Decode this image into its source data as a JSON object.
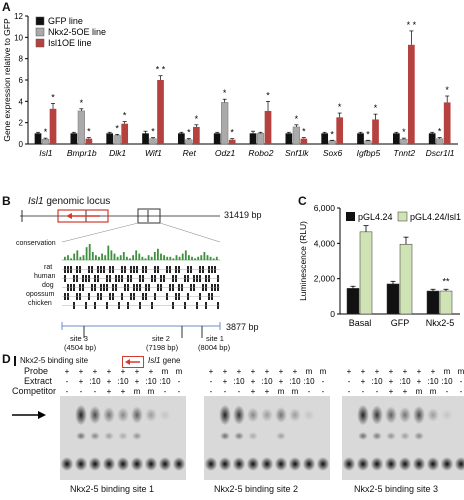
{
  "panels": {
    "a": "A",
    "b": "B",
    "c": "C",
    "d": "D"
  },
  "chart_data": [
    {
      "type": "bar",
      "ylabel": "Gene expression relative to GFP",
      "ylim": [
        0,
        12
      ],
      "yticks": [
        0,
        2,
        4,
        6,
        8,
        10,
        12
      ],
      "legend": "top-left",
      "categories": [
        "Isl1",
        "Bmpr1b",
        "Dlk1",
        "Wif1",
        "Ret",
        "Odz1",
        "Robo2",
        "Snf1lk",
        "Sox6",
        "Igfbp5",
        "Tnnt2",
        "Dscr1l1"
      ],
      "series": [
        {
          "name": "GFP line",
          "color": "#111111",
          "values": [
            1.0,
            1.0,
            1.0,
            1.0,
            1.0,
            1.0,
            1.0,
            1.0,
            1.0,
            1.0,
            1.0,
            1.0
          ],
          "errors": [
            0.1,
            0.1,
            0.1,
            0.2,
            0.1,
            0.1,
            0.2,
            0.1,
            0.1,
            0.1,
            0.1,
            0.1
          ],
          "stars": [
            "",
            "",
            "",
            "",
            "",
            "",
            "",
            "",
            "",
            "",
            "",
            ""
          ]
        },
        {
          "name": "Nkx2-5OE line",
          "color": "#aaaaaa",
          "values": [
            0.45,
            3.1,
            0.8,
            0.5,
            0.4,
            3.9,
            1.0,
            1.6,
            0.3,
            0.3,
            0.45,
            0.5
          ],
          "errors": [
            0.1,
            0.2,
            0.1,
            0.1,
            0.1,
            0.3,
            0.1,
            0.2,
            0.05,
            0.05,
            0.1,
            0.1
          ],
          "stars": [
            "*",
            "*",
            "*",
            "*",
            "*",
            "*",
            "",
            "*",
            "*",
            "*",
            "*",
            "*"
          ]
        },
        {
          "name": "Isl1OE line",
          "color": "#b5423f",
          "values": [
            3.3,
            0.5,
            1.9,
            6.0,
            1.6,
            0.4,
            3.1,
            0.5,
            2.5,
            2.3,
            9.3,
            3.9
          ],
          "errors": [
            0.5,
            0.1,
            0.2,
            0.4,
            0.2,
            0.1,
            0.9,
            0.1,
            0.4,
            0.5,
            1.3,
            0.6
          ],
          "stars": [
            "*",
            "*",
            "*",
            "* *",
            "*",
            "*",
            "*",
            "*",
            "*",
            "*",
            "* *",
            "*"
          ]
        }
      ]
    },
    {
      "type": "bar",
      "ylabel": "Luminescence (RLU)",
      "ylim": [
        0,
        6000
      ],
      "yticks": [
        "0",
        "2,000",
        "4,000",
        "6,000"
      ],
      "legend": "top",
      "categories": [
        "Basal",
        "GFP",
        "Nkx2-5"
      ],
      "series": [
        {
          "name": "pGL4.24",
          "color": "#111111",
          "values": [
            1450,
            1700,
            1300
          ],
          "errors": [
            120,
            150,
            100
          ]
        },
        {
          "name": "pGL4.24/Isl1",
          "color": "#cfe3b5",
          "values": [
            4650,
            3950,
            1300
          ],
          "errors": [
            350,
            400,
            100
          ]
        }
      ],
      "annotation": "**"
    }
  ],
  "panel_b": {
    "title_pre": "",
    "title_gene": "Isl1",
    "title_post": " genomic locus",
    "locus_length": "31419 bp",
    "zoom_length": "3877 bp",
    "tracks": [
      "conservation",
      "rat",
      "human",
      "dog",
      "opossum",
      "chicken"
    ],
    "sites": [
      {
        "label": "site 3",
        "pos": "(4504 bp)"
      },
      {
        "label": "site 2",
        "pos": "(7198 bp)"
      },
      {
        "label": "site 1",
        "pos": "(8004 bp)"
      }
    ],
    "legend_site": "Nkx2-5 binding site",
    "legend_gene_italic": "Isl1",
    "legend_gene_rest": " gene"
  },
  "panel_d": {
    "row_labels": [
      "Probe",
      "Extract",
      "Competitor"
    ],
    "gels": [
      {
        "caption": "Nkx2-5 binding site 1",
        "probe": [
          "+",
          "+",
          "+",
          "+",
          "+",
          "+",
          "+",
          "m",
          "m"
        ],
        "extract": [
          "-",
          "+",
          ":10",
          "+",
          ":10",
          "+",
          ":10",
          ":10",
          "-"
        ],
        "competitor": [
          "-",
          "-",
          "-",
          "+",
          "+",
          "m",
          "m",
          "-",
          "-"
        ]
      },
      {
        "caption": "Nkx2-5 binding site 2",
        "probe": [
          "+",
          "+",
          "+",
          "+",
          "+",
          "+",
          "+",
          "m",
          "m"
        ],
        "extract": [
          "-",
          "+",
          ":10",
          "+",
          ":10",
          "+",
          ":10",
          ":10",
          "-"
        ],
        "competitor": [
          "-",
          "-",
          "-",
          "+",
          "+",
          "m",
          "m",
          "-",
          "-"
        ]
      },
      {
        "caption": "Nkx2-5 binding site 3",
        "probe": [
          "+",
          "+",
          "+",
          "+",
          "+",
          "+",
          "+",
          "m",
          "m"
        ],
        "extract": [
          "-",
          "+",
          ":10",
          "+",
          ":10",
          "+",
          ":10",
          ":10",
          "-"
        ],
        "competitor": [
          "-",
          "-",
          "-",
          "+",
          "+",
          "m",
          "m",
          "-",
          "-"
        ]
      }
    ]
  }
}
